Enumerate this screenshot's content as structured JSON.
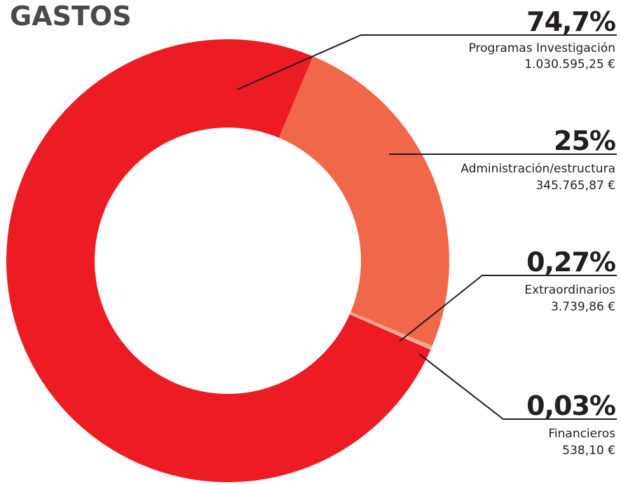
{
  "chart_data": {
    "type": "donut",
    "title": "GASTOS",
    "categories": [
      "Programas Investigación",
      "Administración/estructura",
      "Extraordinarios",
      "Financieros"
    ],
    "values": [
      74.7,
      25,
      0.27,
      0.03
    ],
    "value_labels": [
      "74,7%",
      "25%",
      "0,27%",
      "0,03%"
    ],
    "amount_labels": [
      "1.030.595,25 €",
      "345.765,87 €",
      "3.739,86 €",
      "538,10 €"
    ],
    "colors": [
      "#ed1c24",
      "#f0674a",
      "#f4a38c",
      "#f9c9b8"
    ]
  }
}
